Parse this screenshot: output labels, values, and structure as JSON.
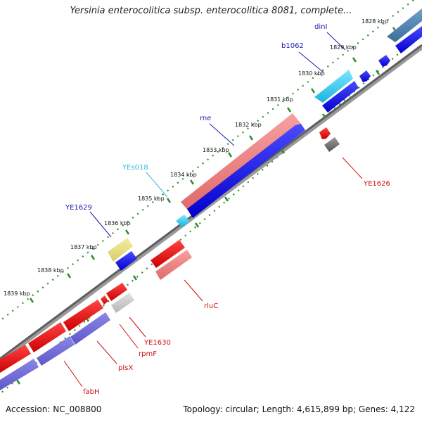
{
  "title": "Yersinia enterocolitica subsp. enterocolitica 8081, complete...",
  "footer": {
    "accession": "Accession: NC_008800",
    "topology": "Topology: circular; Length: 4,615,899 bp; Genes: 4,122"
  },
  "colors": {
    "backbone": "#7f7f7f",
    "tick": "#2e8b2e",
    "gene_label_blue": "#1a1aaa",
    "gene_label_red": "#cc1111",
    "gene_label_cyan": "#33bbdd"
  },
  "ticks": [
    {
      "label": "1828 kbp"
    },
    {
      "label": "1829 kbp"
    },
    {
      "label": "1830 kbp"
    },
    {
      "label": "1831 kbp"
    },
    {
      "label": "1832 kbp"
    },
    {
      "label": "1833 kbp"
    },
    {
      "label": "1834 kbp"
    },
    {
      "label": "1835 kbp"
    },
    {
      "label": "1836 kbp"
    },
    {
      "label": "1837 kbp"
    },
    {
      "label": "1838 kbp"
    },
    {
      "label": "1839 kbp"
    }
  ],
  "gene_labels": [
    {
      "text": "dinI",
      "color": "#1a1aaa"
    },
    {
      "text": "b1062",
      "color": "#1a1aaa"
    },
    {
      "text": "rne",
      "color": "#1a1aaa"
    },
    {
      "text": "YEs018",
      "color": "#33bbdd"
    },
    {
      "text": "YE1629",
      "color": "#1a1aaa"
    },
    {
      "text": "YE1626",
      "color": "#cc1111"
    },
    {
      "text": "rluC",
      "color": "#cc1111"
    },
    {
      "text": "YE1630",
      "color": "#cc1111"
    },
    {
      "text": "rpmF",
      "color": "#cc1111"
    },
    {
      "text": "plsX",
      "color": "#cc1111"
    },
    {
      "text": "fabH",
      "color": "#cc1111"
    }
  ]
}
